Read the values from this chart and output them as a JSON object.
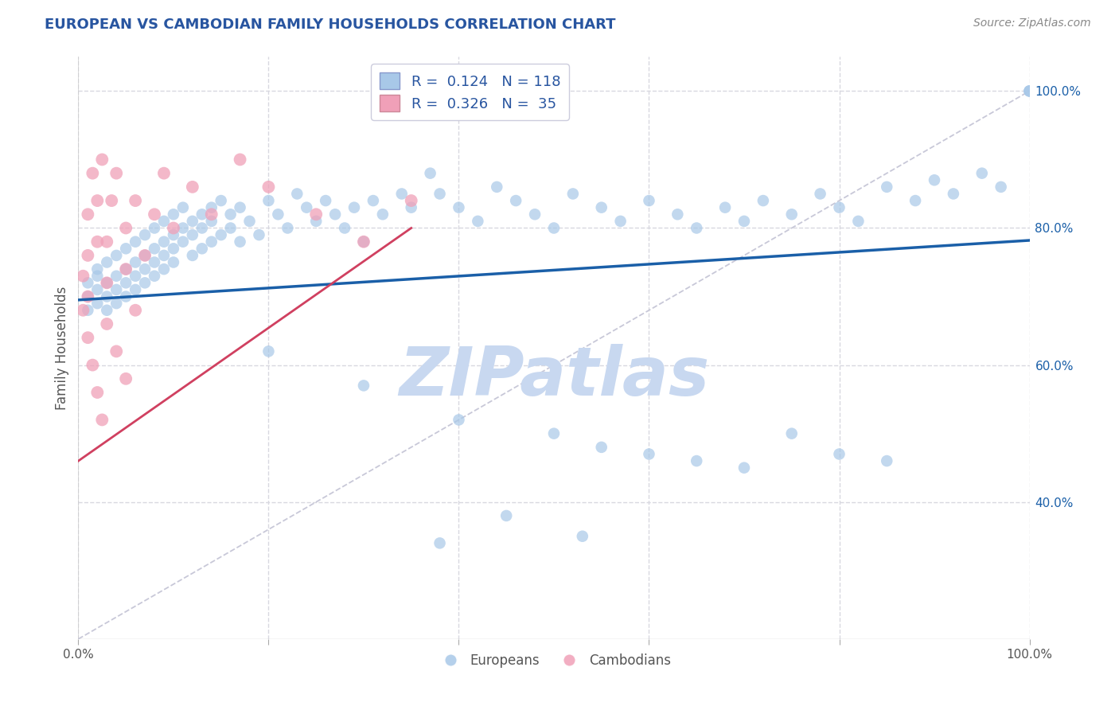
{
  "title": "EUROPEAN VS CAMBODIAN FAMILY HOUSEHOLDS CORRELATION CHART",
  "source": "Source: ZipAtlas.com",
  "ylabel": "Family Households",
  "watermark": "ZIPatlas",
  "xlim": [
    0.0,
    1.0
  ],
  "ylim": [
    0.2,
    1.05
  ],
  "x_ticks": [
    0.0,
    0.2,
    0.4,
    0.6,
    0.8,
    1.0
  ],
  "x_ticklabels": [
    "0.0%",
    "",
    "",
    "",
    "",
    "100.0%"
  ],
  "y_ticks": [
    0.4,
    0.6,
    0.8,
    1.0
  ],
  "y_ticklabels": [
    "40.0%",
    "60.0%",
    "80.0%",
    "100.0%"
  ],
  "legend_blue_r": "0.124",
  "legend_blue_n": "118",
  "legend_pink_r": "0.326",
  "legend_pink_n": "35",
  "blue_color": "#a8c8e8",
  "pink_color": "#f0a0b8",
  "blue_line_color": "#1a5fa8",
  "pink_line_color": "#d04060",
  "diagonal_color": "#c8c8d8",
  "grid_color": "#d8d8e0",
  "title_color": "#2855a0",
  "watermark_color": "#c8d8f0",
  "europeans_x": [
    0.01,
    0.01,
    0.01,
    0.02,
    0.02,
    0.02,
    0.02,
    0.03,
    0.03,
    0.03,
    0.03,
    0.04,
    0.04,
    0.04,
    0.04,
    0.05,
    0.05,
    0.05,
    0.05,
    0.06,
    0.06,
    0.06,
    0.06,
    0.07,
    0.07,
    0.07,
    0.07,
    0.08,
    0.08,
    0.08,
    0.08,
    0.09,
    0.09,
    0.09,
    0.09,
    0.1,
    0.1,
    0.1,
    0.1,
    0.11,
    0.11,
    0.11,
    0.12,
    0.12,
    0.12,
    0.13,
    0.13,
    0.13,
    0.14,
    0.14,
    0.14,
    0.15,
    0.15,
    0.16,
    0.16,
    0.17,
    0.17,
    0.18,
    0.19,
    0.2,
    0.21,
    0.22,
    0.23,
    0.24,
    0.25,
    0.26,
    0.27,
    0.28,
    0.29,
    0.3,
    0.31,
    0.32,
    0.34,
    0.35,
    0.37,
    0.38,
    0.4,
    0.42,
    0.44,
    0.46,
    0.48,
    0.5,
    0.52,
    0.55,
    0.57,
    0.6,
    0.63,
    0.65,
    0.68,
    0.7,
    0.72,
    0.75,
    0.78,
    0.8,
    0.82,
    0.85,
    0.88,
    0.9,
    0.92,
    0.95,
    0.97,
    1.0,
    1.0,
    1.0,
    0.2,
    0.3,
    0.4,
    0.5,
    0.55,
    0.6,
    0.65,
    0.7,
    0.75,
    0.8,
    0.85,
    0.38,
    0.45,
    0.53
  ],
  "europeans_y": [
    0.7,
    0.72,
    0.68,
    0.71,
    0.73,
    0.69,
    0.74,
    0.72,
    0.7,
    0.75,
    0.68,
    0.73,
    0.71,
    0.76,
    0.69,
    0.74,
    0.72,
    0.77,
    0.7,
    0.75,
    0.73,
    0.78,
    0.71,
    0.76,
    0.74,
    0.79,
    0.72,
    0.77,
    0.75,
    0.8,
    0.73,
    0.78,
    0.76,
    0.81,
    0.74,
    0.79,
    0.77,
    0.82,
    0.75,
    0.8,
    0.78,
    0.83,
    0.76,
    0.81,
    0.79,
    0.77,
    0.82,
    0.8,
    0.78,
    0.83,
    0.81,
    0.79,
    0.84,
    0.8,
    0.82,
    0.78,
    0.83,
    0.81,
    0.79,
    0.84,
    0.82,
    0.8,
    0.85,
    0.83,
    0.81,
    0.84,
    0.82,
    0.8,
    0.83,
    0.78,
    0.84,
    0.82,
    0.85,
    0.83,
    0.88,
    0.85,
    0.83,
    0.81,
    0.86,
    0.84,
    0.82,
    0.8,
    0.85,
    0.83,
    0.81,
    0.84,
    0.82,
    0.8,
    0.83,
    0.81,
    0.84,
    0.82,
    0.85,
    0.83,
    0.81,
    0.86,
    0.84,
    0.87,
    0.85,
    0.88,
    0.86,
    1.0,
    1.0,
    1.0,
    0.62,
    0.57,
    0.52,
    0.5,
    0.48,
    0.47,
    0.46,
    0.45,
    0.5,
    0.47,
    0.46,
    0.34,
    0.38,
    0.35
  ],
  "cambodians_x": [
    0.005,
    0.005,
    0.01,
    0.01,
    0.01,
    0.01,
    0.015,
    0.015,
    0.02,
    0.02,
    0.02,
    0.025,
    0.025,
    0.03,
    0.03,
    0.03,
    0.035,
    0.04,
    0.04,
    0.05,
    0.05,
    0.05,
    0.06,
    0.06,
    0.07,
    0.08,
    0.09,
    0.1,
    0.12,
    0.14,
    0.17,
    0.2,
    0.25,
    0.3,
    0.35
  ],
  "cambodians_y": [
    0.68,
    0.73,
    0.64,
    0.7,
    0.76,
    0.82,
    0.6,
    0.88,
    0.56,
    0.78,
    0.84,
    0.52,
    0.9,
    0.66,
    0.72,
    0.78,
    0.84,
    0.62,
    0.88,
    0.58,
    0.74,
    0.8,
    0.68,
    0.84,
    0.76,
    0.82,
    0.88,
    0.8,
    0.86,
    0.82,
    0.9,
    0.86,
    0.82,
    0.78,
    0.84
  ],
  "blue_trend_x0": 0.0,
  "blue_trend_y0": 0.695,
  "blue_trend_x1": 1.0,
  "blue_trend_y1": 0.782,
  "pink_trend_x0": 0.0,
  "pink_trend_y0": 0.46,
  "pink_trend_x1": 0.35,
  "pink_trend_y1": 0.8
}
